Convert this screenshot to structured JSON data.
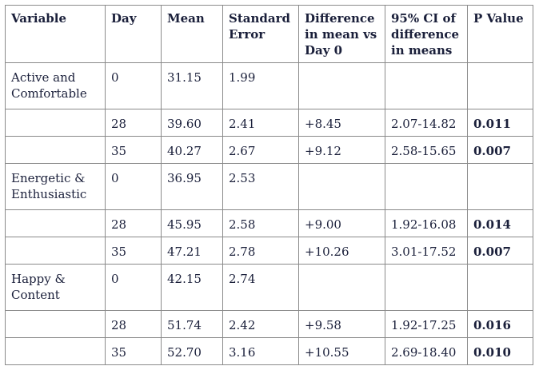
{
  "table": {
    "headers": {
      "variable": "Variable",
      "day": "Day",
      "mean": "Mean",
      "se": "Standard Error",
      "diff": "Difference in mean vs Day 0",
      "ci": "95% CI of difference in means",
      "p": "P Value"
    },
    "groups": [
      {
        "label": "Active and Comfortable",
        "rows": [
          {
            "day": "0",
            "mean": "31.15",
            "se": "1.99",
            "diff": "",
            "ci": "",
            "p": ""
          },
          {
            "day": "28",
            "mean": "39.60",
            "se": "2.41",
            "diff": "+8.45",
            "ci": "2.07-14.82",
            "p": "0.011"
          },
          {
            "day": "35",
            "mean": "40.27",
            "se": "2.67",
            "diff": "+9.12",
            "ci": "2.58-15.65",
            "p": "0.007"
          }
        ]
      },
      {
        "label": "Energetic & Enthusiastic",
        "rows": [
          {
            "day": "0",
            "mean": "36.95",
            "se": "2.53",
            "diff": "",
            "ci": "",
            "p": ""
          },
          {
            "day": "28",
            "mean": "45.95",
            "se": "2.58",
            "diff": "+9.00",
            "ci": "1.92-16.08",
            "p": "0.014"
          },
          {
            "day": "35",
            "mean": "47.21",
            "se": "2.78",
            "diff": "+10.26",
            "ci": "3.01-17.52",
            "p": "0.007"
          }
        ]
      },
      {
        "label": "Happy & Content",
        "rows": [
          {
            "day": "0",
            "mean": "42.15",
            "se": "2.74",
            "diff": "",
            "ci": "",
            "p": ""
          },
          {
            "day": "28",
            "mean": "51.74",
            "se": "2.42",
            "diff": "+9.58",
            "ci": "1.92-17.25",
            "p": "0.016"
          },
          {
            "day": "35",
            "mean": "52.70",
            "se": "3.16",
            "diff": "+10.55",
            "ci": "2.69-18.40",
            "p": "0.010"
          }
        ]
      }
    ]
  }
}
